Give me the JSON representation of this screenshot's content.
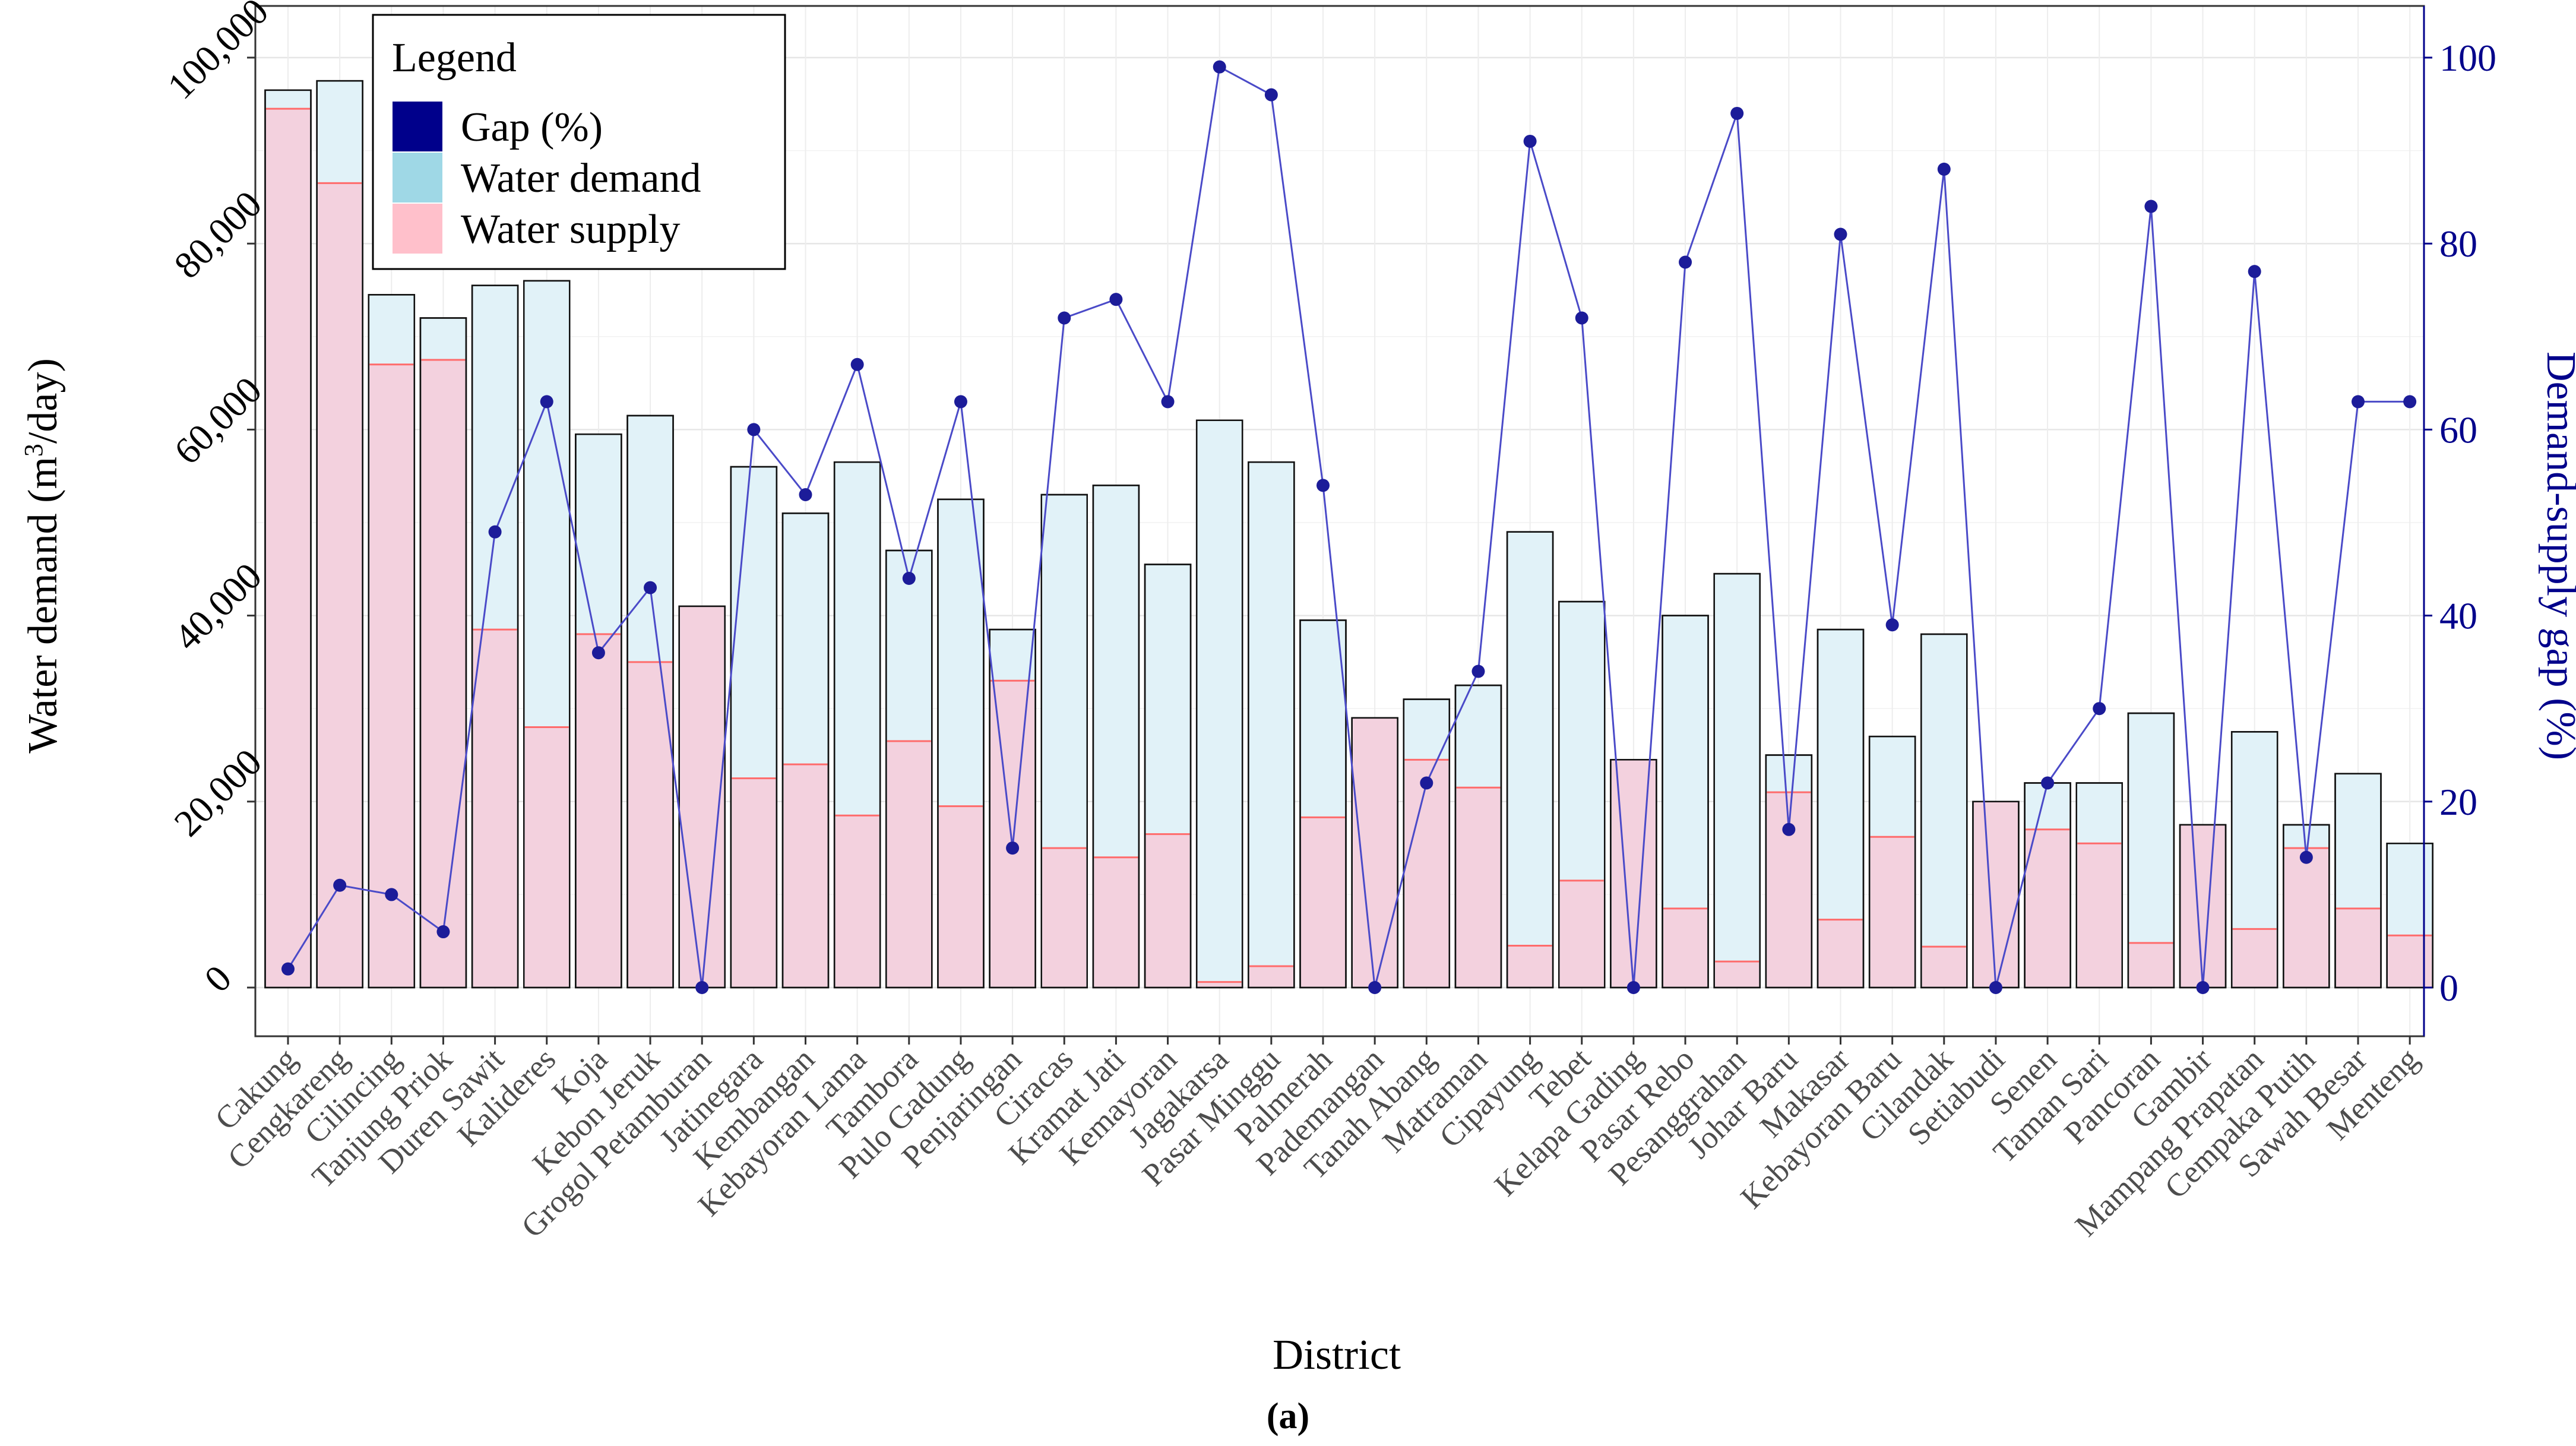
{
  "chart_data": {
    "type": "bar",
    "title": "",
    "caption": "(a)",
    "xlabel": "District",
    "ylabel": "Water demand (m³/day)",
    "ylabel_parts": {
      "pre": "Water demand (m",
      "sup": "3",
      "post": "/day)"
    },
    "y2label": "Demand-supply gap (%)",
    "ylim": [
      0,
      100000
    ],
    "y2lim": [
      0,
      100
    ],
    "yticks": [
      "0",
      "20,000",
      "40,000",
      "60,000",
      "80,000",
      "100,000"
    ],
    "y2ticks": [
      "0",
      "20",
      "40",
      "60",
      "80",
      "100"
    ],
    "grid": true,
    "legend": {
      "title": "Legend",
      "position": "top-left",
      "items": [
        {
          "label": "Gap (%)",
          "color": "#00008b"
        },
        {
          "label": "Water demand",
          "color": "#9fd8e6"
        },
        {
          "label": "Water supply",
          "color": "#ffc0cb"
        }
      ]
    },
    "colors": {
      "demand_fill": "#e1f2f8",
      "supply_fill": "#f3cfdc",
      "supply_line": "#ff6b6b",
      "gap_line": "#4a4ac8",
      "gap_point": "#1c1c99",
      "axis2": "#00008b"
    },
    "categories": [
      "Cakung",
      "Cengkareng",
      "Cilincing",
      "Tanjung Priok",
      "Duren Sawit",
      "Kalideres",
      "Koja",
      "Kebon Jeruk",
      "Grogol Petamburan",
      "Jatinegara",
      "Kembangan",
      "Kebayoran Lama",
      "Tambora",
      "Pulo Gadung",
      "Penjaringan",
      "Ciracas",
      "Kramat Jati",
      "Kemayoran",
      "Jagakarsa",
      "Pasar Minggu",
      "Palmerah",
      "Pademangan",
      "Tanah Abang",
      "Matraman",
      "Cipayung",
      "Tebet",
      "Kelapa Gading",
      "Pasar Rebo",
      "Pesanggrahan",
      "Johar Baru",
      "Makasar",
      "Kebayoran Baru",
      "Cilandak",
      "Setiabudi",
      "Senen",
      "Taman Sari",
      "Pancoran",
      "Gambir",
      "Mampang Prapatan",
      "Cempaka Putih",
      "Sawah Besar",
      "Menteng"
    ],
    "series": [
      {
        "name": "Water demand",
        "axis": "left",
        "values": [
          96500,
          97500,
          74500,
          72000,
          75500,
          76000,
          59500,
          61500,
          41000,
          56000,
          51000,
          56500,
          47000,
          52500,
          38500,
          53000,
          54000,
          45500,
          61000,
          56500,
          39500,
          29000,
          31000,
          32500,
          49000,
          41500,
          24500,
          40000,
          44500,
          25000,
          38500,
          27000,
          38000,
          20000,
          22000,
          22000,
          29500,
          17500,
          27500,
          17500,
          23000,
          15500
        ]
      },
      {
        "name": "Water supply",
        "axis": "left",
        "values": [
          94500,
          86500,
          67000,
          67500,
          38500,
          28000,
          38000,
          35000,
          41000,
          22500,
          24000,
          18500,
          26500,
          19500,
          33000,
          15000,
          14000,
          16500,
          600,
          2300,
          18300,
          29000,
          24500,
          21500,
          4500,
          11500,
          24500,
          8500,
          2800,
          21000,
          7300,
          16200,
          4400,
          20000,
          17000,
          15500,
          4800,
          17500,
          6300,
          15000,
          8500,
          5600
        ]
      },
      {
        "name": "Gap (%)",
        "axis": "right",
        "values": [
          2,
          11,
          10,
          6,
          49,
          63,
          36,
          43,
          0,
          60,
          53,
          67,
          44,
          63,
          15,
          72,
          74,
          63,
          99,
          96,
          54,
          0,
          22,
          34,
          91,
          72,
          0,
          78,
          94,
          17,
          81,
          39,
          88,
          0,
          22,
          30,
          84,
          0,
          77,
          14,
          63,
          63
        ]
      }
    ]
  }
}
